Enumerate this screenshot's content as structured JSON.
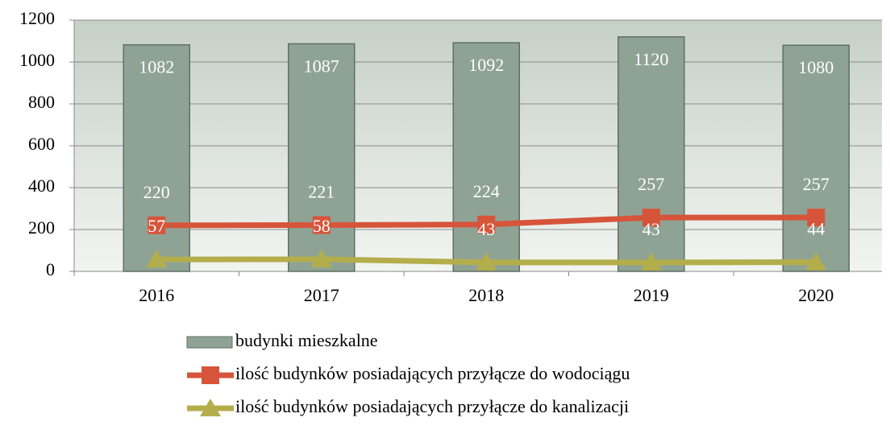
{
  "chart_data": {
    "type": "bar",
    "categories": [
      "2016",
      "2017",
      "2018",
      "2019",
      "2020"
    ],
    "series": [
      {
        "name": "budynki mieszkalne",
        "type": "bar",
        "color": "#8fa395",
        "values": [
          1082,
          1087,
          1092,
          1120,
          1080
        ]
      },
      {
        "name": "ilość budynków posiadających przyłącze do wodociągu",
        "type": "line",
        "marker": "square",
        "color": "#d6553a",
        "values": [
          220,
          221,
          224,
          257,
          257
        ]
      },
      {
        "name": "ilość budynków posiadających przyłącze do kanalizacji",
        "type": "line",
        "marker": "triangle",
        "color": "#b3ae4b",
        "values": [
          57,
          58,
          43,
          43,
          44
        ]
      }
    ],
    "ylim": [
      0,
      1200
    ],
    "yticks": [
      0,
      200,
      400,
      600,
      800,
      1000,
      1200
    ],
    "grid": true,
    "legend": "bottom"
  }
}
